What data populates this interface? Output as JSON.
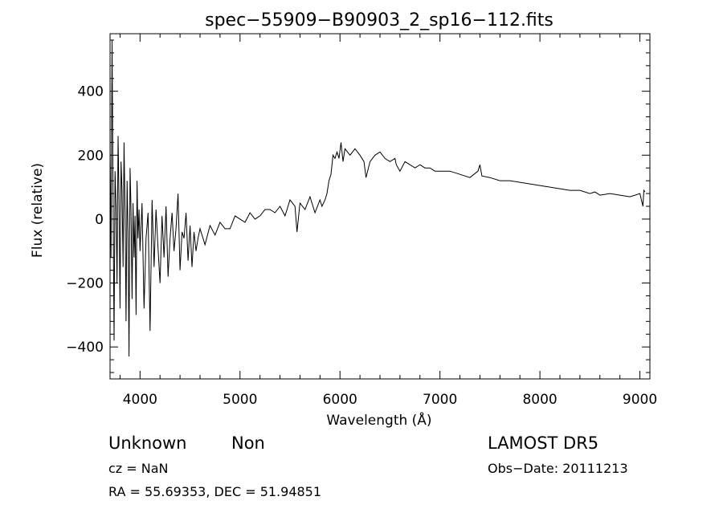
{
  "chart_data": {
    "type": "line",
    "title": "spec−55909−B90903_2_sp16−112.fits",
    "xlabel": "Wavelength (Å)",
    "ylabel": "Flux (relative)",
    "xlim": [
      3700,
      9100
    ],
    "ylim": [
      -500,
      580
    ],
    "xticks": [
      4000,
      5000,
      6000,
      7000,
      8000,
      9000
    ],
    "yticks": [
      -400,
      -200,
      0,
      200,
      400
    ],
    "ytick_labels": [
      "−400",
      "−200",
      "0",
      "200",
      "400"
    ],
    "grid": false,
    "legend": "none",
    "line_color": "#000000",
    "series": [
      {
        "x": [
          3700,
          3710,
          3720,
          3730,
          3740,
          3750,
          3760,
          3770,
          3780,
          3790,
          3800,
          3810,
          3820,
          3830,
          3840,
          3850,
          3860,
          3870,
          3880,
          3890,
          3900,
          3910,
          3920,
          3930,
          3940,
          3950,
          3960,
          3970,
          3980,
          3990,
          4000,
          4020,
          4040,
          4060,
          4080,
          4100,
          4120,
          4140,
          4160,
          4180,
          4200,
          4220,
          4240,
          4260,
          4280,
          4300,
          4320,
          4340,
          4360,
          4380,
          4400,
          4420,
          4440,
          4460,
          4480,
          4500,
          4520,
          4540,
          4560,
          4580,
          4600,
          4650,
          4700,
          4750,
          4800,
          4850,
          4900,
          4950,
          5000,
          5050,
          5100,
          5150,
          5200,
          5250,
          5300,
          5350,
          5400,
          5450,
          5500,
          5550,
          5570,
          5600,
          5650,
          5700,
          5750,
          5800,
          5820,
          5850,
          5870,
          5890,
          5910,
          5930,
          5950,
          5970,
          5990,
          6010,
          6030,
          6050,
          6100,
          6150,
          6200,
          6240,
          6260,
          6300,
          6350,
          6400,
          6450,
          6500,
          6550,
          6563,
          6600,
          6650,
          6700,
          6750,
          6800,
          6850,
          6900,
          6950,
          7000,
          7100,
          7200,
          7300,
          7380,
          7400,
          7420,
          7500,
          7600,
          7700,
          7800,
          7900,
          8000,
          8100,
          8200,
          8300,
          8400,
          8500,
          8550,
          8600,
          8700,
          8800,
          8900,
          9000,
          9030,
          9040,
          9050
        ],
        "y": [
          210,
          -120,
          560,
          80,
          -380,
          150,
          40,
          -200,
          260,
          60,
          -280,
          180,
          90,
          -150,
          240,
          20,
          -320,
          120,
          -40,
          -430,
          160,
          30,
          -250,
          50,
          -120,
          10,
          -300,
          120,
          -60,
          30,
          -100,
          50,
          -280,
          -60,
          20,
          -350,
          60,
          -150,
          30,
          -90,
          -200,
          10,
          -120,
          40,
          -180,
          -60,
          20,
          -100,
          -30,
          80,
          -160,
          -40,
          -60,
          20,
          -130,
          -20,
          -150,
          -40,
          -100,
          -60,
          -30,
          -80,
          -20,
          -50,
          -10,
          -30,
          -30,
          10,
          0,
          -10,
          20,
          0,
          10,
          30,
          30,
          20,
          40,
          10,
          60,
          40,
          -40,
          50,
          30,
          70,
          20,
          60,
          40,
          60,
          80,
          120,
          140,
          200,
          190,
          210,
          190,
          240,
          180,
          220,
          200,
          220,
          200,
          180,
          130,
          180,
          200,
          210,
          190,
          180,
          190,
          170,
          150,
          180,
          170,
          160,
          170,
          160,
          160,
          150,
          150,
          150,
          140,
          130,
          150,
          170,
          135,
          130,
          120,
          120,
          115,
          110,
          105,
          100,
          95,
          90,
          90,
          80,
          85,
          75,
          80,
          75,
          70,
          80,
          40,
          90,
          85
        ]
      }
    ]
  },
  "footer": {
    "object_class": "Unknown",
    "object_subclass": "Non",
    "cz": "cz = NaN",
    "coords": "RA =  55.69353, DEC =  51.94851",
    "survey": "LAMOST DR5",
    "obs_date": "Obs−Date: 20111213"
  }
}
